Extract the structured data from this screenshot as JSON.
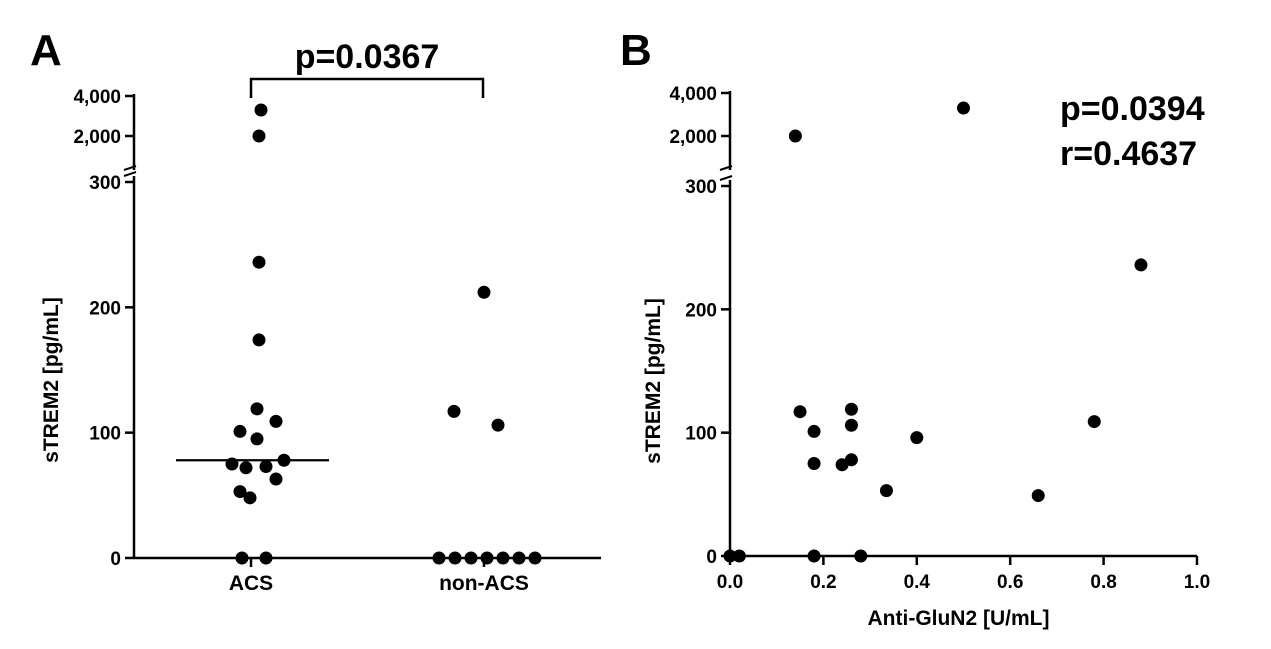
{
  "chart_data": [
    {
      "type": "scatter",
      "panel_label": "A",
      "subtype": "dot plot with median line, broken y-axis",
      "categories": [
        "ACS",
        "non-ACS"
      ],
      "ylabel": "sTREM2 [pg/mL]",
      "xlabel": "",
      "y_axis_break": {
        "lower_range": [
          0,
          300
        ],
        "upper_range": [
          1000,
          4500
        ]
      },
      "yticks_lower": [
        0,
        100,
        200,
        300
      ],
      "yticks_lower_labels": [
        "0",
        "100",
        "200",
        "300"
      ],
      "yticks_upper": [
        2000,
        4000
      ],
      "yticks_upper_labels": [
        "2,000",
        "4,000"
      ],
      "series": [
        {
          "category": "ACS",
          "values": [
            3300,
            2000,
            236,
            174,
            119,
            109,
            101,
            95,
            78,
            75,
            73,
            72,
            63,
            53,
            48,
            0,
            0
          ],
          "median": 78
        },
        {
          "category": "non-ACS",
          "values": [
            212,
            117,
            106,
            0,
            0,
            0,
            0,
            0,
            0,
            0
          ]
        }
      ],
      "annotation": "p=0.0367",
      "comparison_bracket": [
        "ACS",
        "non-ACS"
      ],
      "grid": false
    },
    {
      "type": "scatter",
      "panel_label": "B",
      "xlabel": "Anti-GluN2 [U/mL]",
      "ylabel": "sTREM2 [pg/mL]",
      "xlim": [
        0,
        1.0
      ],
      "xticks": [
        0.0,
        0.2,
        0.4,
        0.6,
        0.8,
        1.0
      ],
      "xtick_labels": [
        "0.0",
        "0.2",
        "0.4",
        "0.6",
        "0.8",
        "1.0"
      ],
      "y_axis_break": {
        "lower_range": [
          0,
          300
        ],
        "upper_range": [
          1000,
          4500
        ]
      },
      "yticks_lower": [
        0,
        100,
        200,
        300
      ],
      "yticks_lower_labels": [
        "0",
        "100",
        "200",
        "300"
      ],
      "yticks_upper": [
        2000,
        4000
      ],
      "yticks_upper_labels": [
        "2,000",
        "4,000"
      ],
      "points": [
        {
          "x": 0.0,
          "y": 0
        },
        {
          "x": 0.02,
          "y": 0
        },
        {
          "x": 0.14,
          "y": 2000
        },
        {
          "x": 0.5,
          "y": 3300
        },
        {
          "x": 0.88,
          "y": 236
        },
        {
          "x": 0.15,
          "y": 117
        },
        {
          "x": 0.18,
          "y": 101
        },
        {
          "x": 0.18,
          "y": 75
        },
        {
          "x": 0.18,
          "y": 0
        },
        {
          "x": 0.24,
          "y": 74
        },
        {
          "x": 0.26,
          "y": 119
        },
        {
          "x": 0.26,
          "y": 106
        },
        {
          "x": 0.26,
          "y": 78
        },
        {
          "x": 0.28,
          "y": 0
        },
        {
          "x": 0.335,
          "y": 53
        },
        {
          "x": 0.4,
          "y": 96
        },
        {
          "x": 0.66,
          "y": 49
        },
        {
          "x": 0.78,
          "y": 109
        }
      ],
      "annotations": [
        "p=0.0394",
        "r=0.4637"
      ],
      "grid": false
    }
  ]
}
